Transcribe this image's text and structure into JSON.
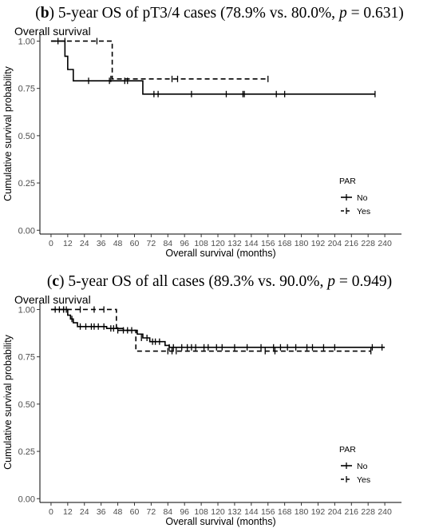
{
  "figure": {
    "panels": [
      {
        "caption": {
          "letter": "b",
          "open": "(",
          "close": ")",
          "text_before_p": " 5-year OS of pT3/4 cases (78.9% vs. 80.0%, ",
          "p_label": "p",
          "text_after_p": " = 0.631)"
        },
        "subtitle": "Overall survival"
      },
      {
        "caption": {
          "letter": "c",
          "open": "(",
          "close": ")",
          "text_before_p": " 5-year OS of all cases (89.3% vs. 90.0%, ",
          "p_label": "p",
          "text_after_p": " = 0.949)"
        },
        "subtitle": "Overall survival"
      }
    ]
  },
  "chart_data": [
    {
      "type": "line",
      "step": true,
      "title": "Overall survival",
      "xlabel": "Overall survival (months)",
      "ylabel": "Cumulative survival probability",
      "x_ticks": [
        0,
        12,
        24,
        36,
        48,
        60,
        72,
        84,
        96,
        108,
        120,
        132,
        144,
        156,
        168,
        180,
        192,
        204,
        216,
        228,
        240
      ],
      "y_ticks": [
        0.0,
        0.25,
        0.5,
        0.75,
        1.0
      ],
      "y_tick_labels": [
        "0.00",
        "0.25",
        "0.50",
        "0.75",
        "1.00"
      ],
      "xlim": [
        -8,
        252
      ],
      "ylim": [
        -0.02,
        1.04
      ],
      "grid": false,
      "legend": {
        "title": "PAR",
        "position": "right"
      },
      "series": [
        {
          "name": "No",
          "line_style": "solid",
          "steps": [
            [
              0,
              1.0
            ],
            [
              10,
              0.92
            ],
            [
              12,
              0.85
            ],
            [
              16,
              0.79
            ],
            [
              66,
              0.72
            ],
            [
              233,
              0.72
            ]
          ],
          "censored": [
            [
              5,
              1.0
            ],
            [
              27,
              0.79
            ],
            [
              42,
              0.79
            ],
            [
              53,
              0.79
            ],
            [
              55,
              0.79
            ],
            [
              74,
              0.72
            ],
            [
              77,
              0.72
            ],
            [
              101,
              0.72
            ],
            [
              126,
              0.72
            ],
            [
              138,
              0.72
            ],
            [
              139,
              0.72
            ],
            [
              162,
              0.72
            ],
            [
              168,
              0.72
            ],
            [
              233,
              0.72
            ]
          ]
        },
        {
          "name": "Yes",
          "line_style": "dashed",
          "steps": [
            [
              0,
              1.0
            ],
            [
              44,
              0.8
            ],
            [
              156,
              0.8
            ]
          ],
          "censored": [
            [
              10,
              1.0
            ],
            [
              33,
              1.0
            ],
            [
              43,
              0.8
            ],
            [
              87,
              0.8
            ],
            [
              91,
              0.8
            ],
            [
              156,
              0.8
            ]
          ]
        }
      ]
    },
    {
      "type": "line",
      "step": true,
      "title": "Overall survival",
      "xlabel": "Overall survival (months)",
      "ylabel": "Cumulative survival probability",
      "x_ticks": [
        0,
        12,
        24,
        36,
        48,
        60,
        72,
        84,
        96,
        108,
        120,
        132,
        144,
        156,
        168,
        180,
        192,
        204,
        216,
        228,
        240
      ],
      "y_ticks": [
        0.0,
        0.25,
        0.5,
        0.75,
        1.0
      ],
      "y_tick_labels": [
        "0.00",
        "0.25",
        "0.50",
        "0.75",
        "1.00"
      ],
      "xlim": [
        -8,
        252
      ],
      "ylim": [
        -0.02,
        1.04
      ],
      "grid": false,
      "legend": {
        "title": "PAR",
        "position": "right"
      },
      "series": [
        {
          "name": "No",
          "line_style": "solid",
          "steps": [
            [
              0,
              1.0
            ],
            [
              12,
              0.97
            ],
            [
              14,
              0.95
            ],
            [
              16,
              0.93
            ],
            [
              19,
              0.91
            ],
            [
              40,
              0.9
            ],
            [
              52,
              0.89
            ],
            [
              62,
              0.87
            ],
            [
              66,
              0.85
            ],
            [
              71,
              0.83
            ],
            [
              82,
              0.81
            ],
            [
              85,
              0.8
            ],
            [
              240,
              0.8
            ]
          ],
          "censored": [
            [
              3,
              1.0
            ],
            [
              6,
              1.0
            ],
            [
              9,
              1.0
            ],
            [
              11,
              1.0
            ],
            [
              15,
              0.95
            ],
            [
              21,
              0.91
            ],
            [
              25,
              0.91
            ],
            [
              29,
              0.91
            ],
            [
              31,
              0.91
            ],
            [
              34,
              0.91
            ],
            [
              38,
              0.91
            ],
            [
              43,
              0.9
            ],
            [
              45,
              0.9
            ],
            [
              48,
              0.89
            ],
            [
              52,
              0.89
            ],
            [
              55,
              0.89
            ],
            [
              58,
              0.89
            ],
            [
              65,
              0.85
            ],
            [
              69,
              0.85
            ],
            [
              73,
              0.83
            ],
            [
              75,
              0.83
            ],
            [
              78,
              0.83
            ],
            [
              85,
              0.8
            ],
            [
              88,
              0.8
            ],
            [
              94,
              0.8
            ],
            [
              98,
              0.8
            ],
            [
              101,
              0.8
            ],
            [
              104,
              0.8
            ],
            [
              110,
              0.8
            ],
            [
              113,
              0.8
            ],
            [
              119,
              0.8
            ],
            [
              123,
              0.8
            ],
            [
              132,
              0.8
            ],
            [
              141,
              0.8
            ],
            [
              151,
              0.8
            ],
            [
              160,
              0.8
            ],
            [
              165,
              0.8
            ],
            [
              170,
              0.8
            ],
            [
              176,
              0.8
            ],
            [
              184,
              0.8
            ],
            [
              188,
              0.8
            ],
            [
              196,
              0.8
            ],
            [
              204,
              0.8
            ],
            [
              231,
              0.8
            ],
            [
              238,
              0.8
            ]
          ]
        },
        {
          "name": "Yes",
          "line_style": "dashed",
          "steps": [
            [
              0,
              1.0
            ],
            [
              46,
              1.0
            ],
            [
              47,
              0.89
            ],
            [
              60,
              0.89
            ],
            [
              61,
              0.78
            ],
            [
              230,
              0.78
            ]
          ],
          "censored": [
            [
              9,
              1.0
            ],
            [
              21,
              1.0
            ],
            [
              31,
              1.0
            ],
            [
              38,
              1.0
            ],
            [
              84,
              0.78
            ],
            [
              87,
              0.78
            ],
            [
              90,
              0.78
            ],
            [
              154,
              0.78
            ],
            [
              161,
              0.78
            ],
            [
              230,
              0.78
            ]
          ]
        }
      ]
    }
  ]
}
